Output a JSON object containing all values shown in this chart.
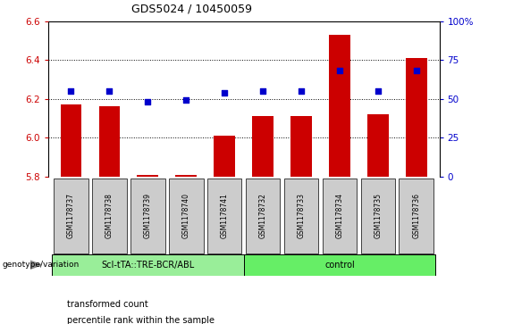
{
  "title": "GDS5024 / 10450059",
  "samples": [
    "GSM1178737",
    "GSM1178738",
    "GSM1178739",
    "GSM1178740",
    "GSM1178741",
    "GSM1178732",
    "GSM1178733",
    "GSM1178734",
    "GSM1178735",
    "GSM1178736"
  ],
  "bar_values": [
    6.17,
    6.16,
    5.81,
    5.81,
    6.01,
    6.11,
    6.11,
    6.53,
    6.12,
    6.41
  ],
  "dot_values_pct": [
    55,
    55,
    48,
    49,
    54,
    55,
    55,
    68,
    55,
    68
  ],
  "bar_bottom": 5.8,
  "ylim_left": [
    5.8,
    6.6
  ],
  "ylim_right": [
    0,
    100
  ],
  "yticks_left": [
    5.8,
    6.0,
    6.2,
    6.4,
    6.6
  ],
  "yticks_right": [
    0,
    25,
    50,
    75,
    100
  ],
  "ytick_labels_right": [
    "0",
    "25",
    "50",
    "75",
    "100%"
  ],
  "bar_color": "#CC0000",
  "dot_color": "#0000CC",
  "group1_label": "ScI-tTA::TRE-BCR/ABL",
  "group2_label": "control",
  "group1_color": "#99EE99",
  "group2_color": "#66EE66",
  "group1_count": 5,
  "group2_count": 5,
  "genotype_label": "genotype/variation",
  "legend_bar_label": "transformed count",
  "legend_dot_label": "percentile rank within the sample",
  "tick_label_color_left": "#CC0000",
  "tick_label_color_right": "#0000CC"
}
